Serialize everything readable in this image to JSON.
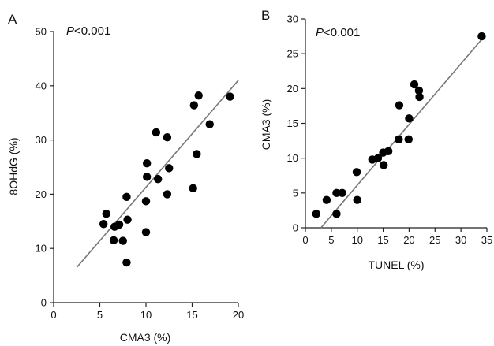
{
  "chart_data": [
    {
      "type": "scatter",
      "panel_label": "A",
      "annotation": {
        "p_italic": "P",
        "p_rest": "<0.001"
      },
      "xlabel": "CMA3 (%)",
      "ylabel": "8OHdG (%)",
      "xlim": [
        0,
        20
      ],
      "ylim": [
        0,
        50
      ],
      "xticks": [
        0,
        5,
        10,
        15,
        20
      ],
      "yticks": [
        0,
        10,
        20,
        30,
        40,
        50
      ],
      "points": [
        {
          "x": 5.4,
          "y": 14.5
        },
        {
          "x": 5.7,
          "y": 16.4
        },
        {
          "x": 6.5,
          "y": 11.5
        },
        {
          "x": 6.6,
          "y": 14.0
        },
        {
          "x": 7.1,
          "y": 14.4
        },
        {
          "x": 7.5,
          "y": 11.4
        },
        {
          "x": 7.9,
          "y": 19.5
        },
        {
          "x": 7.9,
          "y": 7.4
        },
        {
          "x": 8.0,
          "y": 15.3
        },
        {
          "x": 10.0,
          "y": 18.7
        },
        {
          "x": 10.0,
          "y": 13.0
        },
        {
          "x": 10.1,
          "y": 23.2
        },
        {
          "x": 10.1,
          "y": 25.7
        },
        {
          "x": 11.1,
          "y": 31.4
        },
        {
          "x": 11.3,
          "y": 22.8
        },
        {
          "x": 12.3,
          "y": 20.0
        },
        {
          "x": 12.3,
          "y": 30.5
        },
        {
          "x": 12.5,
          "y": 24.8
        },
        {
          "x": 15.1,
          "y": 21.1
        },
        {
          "x": 15.2,
          "y": 36.4
        },
        {
          "x": 15.5,
          "y": 27.4
        },
        {
          "x": 15.7,
          "y": 38.2
        },
        {
          "x": 16.9,
          "y": 32.9
        },
        {
          "x": 19.1,
          "y": 38.0
        }
      ],
      "fit_line": {
        "x": [
          2.5,
          20.0
        ],
        "y": [
          6.5,
          41.0
        ]
      }
    },
    {
      "type": "scatter",
      "panel_label": "B",
      "annotation": {
        "p_italic": "P",
        "p_rest": "<0.001"
      },
      "xlabel": "TUNEL (%)",
      "ylabel": "CMA3 (%)",
      "xlim": [
        0,
        35
      ],
      "ylim": [
        0,
        30
      ],
      "xticks": [
        0,
        5,
        10,
        15,
        20,
        25,
        30,
        35
      ],
      "yticks": [
        0,
        5,
        10,
        15,
        20,
        25,
        30
      ],
      "points": [
        {
          "x": 2.1,
          "y": 2.0
        },
        {
          "x": 4.1,
          "y": 4.0
        },
        {
          "x": 6.0,
          "y": 2.0
        },
        {
          "x": 6.0,
          "y": 5.0
        },
        {
          "x": 7.1,
          "y": 5.0
        },
        {
          "x": 9.9,
          "y": 8.0
        },
        {
          "x": 10.0,
          "y": 4.0
        },
        {
          "x": 12.9,
          "y": 9.8
        },
        {
          "x": 14.0,
          "y": 10.0
        },
        {
          "x": 15.0,
          "y": 10.8
        },
        {
          "x": 15.1,
          "y": 9.0
        },
        {
          "x": 16.0,
          "y": 11.0
        },
        {
          "x": 18.0,
          "y": 12.7
        },
        {
          "x": 18.1,
          "y": 17.6
        },
        {
          "x": 19.9,
          "y": 12.7
        },
        {
          "x": 20.0,
          "y": 15.7
        },
        {
          "x": 21.0,
          "y": 20.6
        },
        {
          "x": 21.9,
          "y": 19.7
        },
        {
          "x": 22.0,
          "y": 18.8
        },
        {
          "x": 34.0,
          "y": 27.5
        }
      ],
      "fit_line": {
        "x": [
          3.0,
          34.5
        ],
        "y": [
          0.0,
          27.5
        ]
      }
    }
  ]
}
